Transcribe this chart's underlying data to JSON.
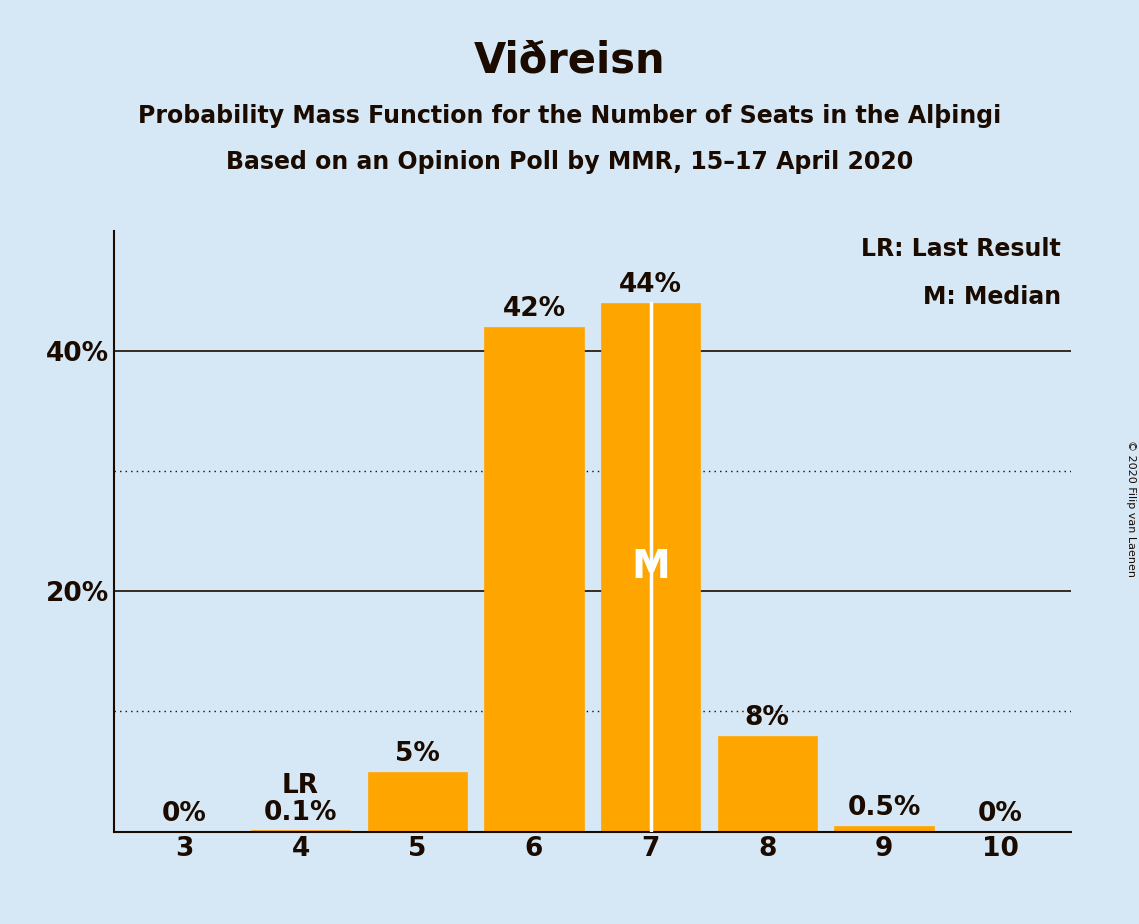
{
  "title": "Viðreisn",
  "subtitle1": "Probability Mass Function for the Number of Seats in the Alþingi",
  "subtitle2": "Based on an Opinion Poll by MMR, 15–17 April 2020",
  "copyright": "© 2020 Filip van Laenen",
  "categories": [
    3,
    4,
    5,
    6,
    7,
    8,
    9,
    10
  ],
  "values": [
    0.0,
    0.1,
    5.0,
    42.0,
    44.0,
    8.0,
    0.5,
    0.0
  ],
  "labels": [
    "0%",
    "0.1%",
    "5%",
    "42%",
    "44%",
    "8%",
    "0.5%",
    "0%"
  ],
  "bar_color": "#FFA500",
  "bar_edge_color": "#FFA500",
  "background_color": "#D6E8F5",
  "text_color": "#1a0a00",
  "median_idx": 4,
  "last_result_idx": 1,
  "ylim": [
    0,
    50
  ],
  "solid_yticks": [
    20,
    40
  ],
  "dotted_yticks": [
    10,
    30
  ],
  "legend_text1": "LR: Last Result",
  "legend_text2": "M: Median",
  "title_fontsize": 30,
  "subtitle_fontsize": 17,
  "axis_fontsize": 19,
  "label_fontsize": 19,
  "legend_fontsize": 17
}
